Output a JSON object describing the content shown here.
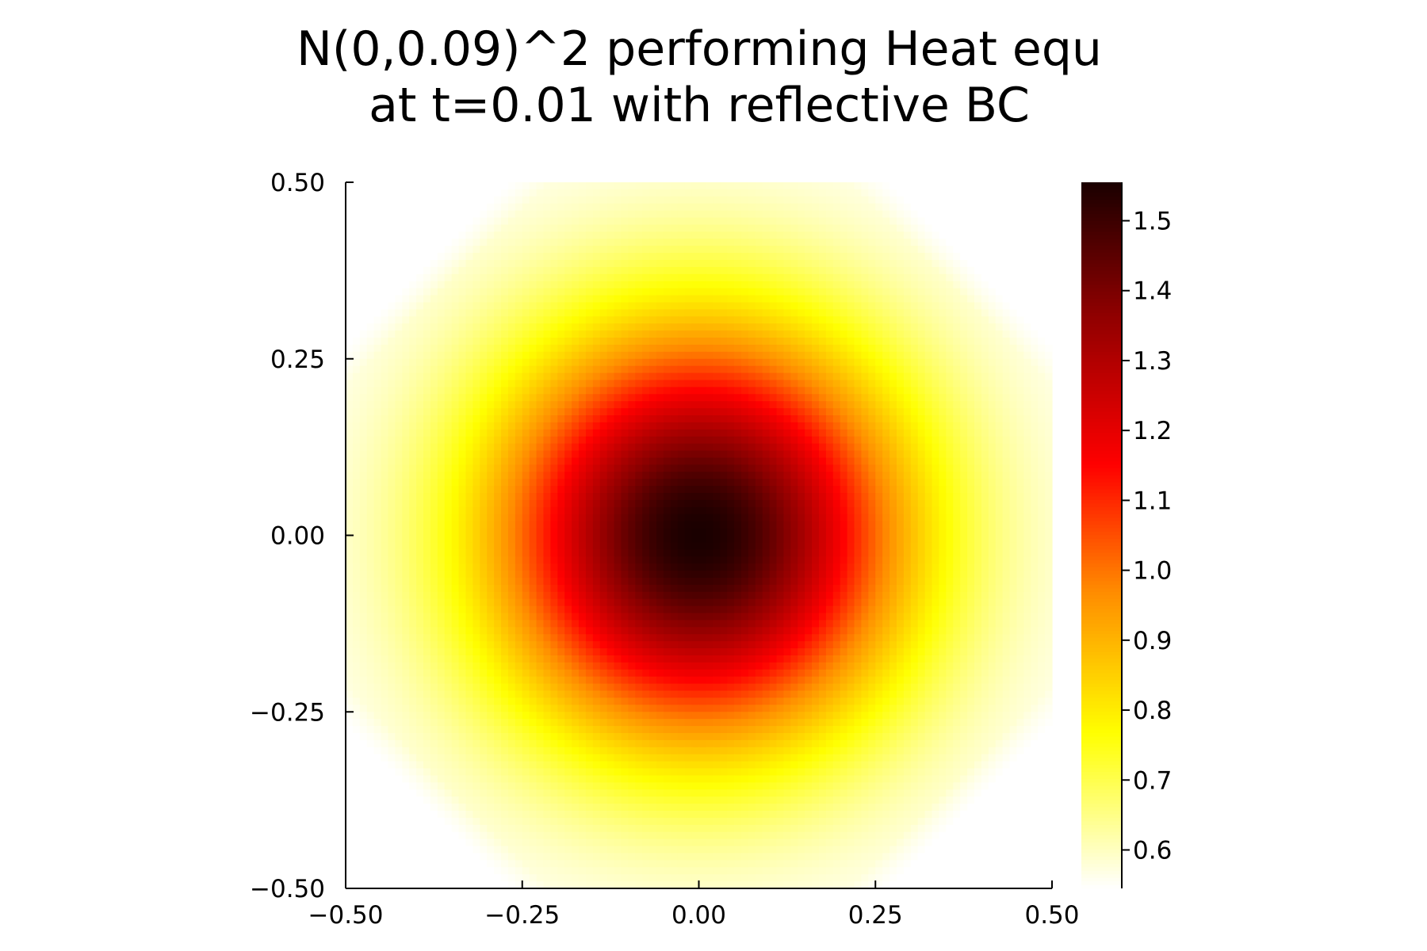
{
  "chart_data": {
    "type": "heatmap",
    "title_lines": [
      "N(0,0.09)^2 performing Heat equ",
      "at t=0.01 with reflective BC"
    ],
    "xlabel": "",
    "ylabel": "",
    "xlim": [
      -0.5,
      0.5
    ],
    "ylim": [
      -0.5,
      0.5
    ],
    "x_ticks": [
      -0.5,
      -0.25,
      0.0,
      0.25,
      0.5
    ],
    "x_tick_labels": [
      "−0.50",
      "−0.25",
      "0.00",
      "0.25",
      "0.50"
    ],
    "y_ticks": [
      -0.5,
      -0.25,
      0.0,
      0.25,
      0.5
    ],
    "y_tick_labels": [
      "−0.50",
      "−0.25",
      "0.00",
      "0.25",
      "0.50"
    ],
    "colorbar": {
      "range": [
        0.545,
        1.555
      ],
      "ticks": [
        0.6,
        0.7,
        0.8,
        0.9,
        1.0,
        1.1,
        1.2,
        1.3,
        1.4,
        1.5
      ],
      "tick_labels": [
        "0.6",
        "0.7",
        "0.8",
        "0.9",
        "1.0",
        "1.1",
        "1.2",
        "1.3",
        "1.4",
        "1.5"
      ]
    },
    "colormap": "heat",
    "colormap_stops": [
      "#ffffff",
      "#ffff00",
      "#ff8c00",
      "#ff0000",
      "#8b0000",
      "#1a0000"
    ],
    "field": {
      "grid": 100,
      "center_value": 1.555,
      "center_band": [
        0.0,
        0.0
      ],
      "min_value": 0.545,
      "corner_cut_value": 0.545,
      "notes_level_contours": [
        {
          "value": 0.7,
          "approx_extent": 0.46
        },
        {
          "value": 1.0,
          "approx_extent": 0.27
        },
        {
          "value": 1.3,
          "approx_extent": 0.13
        }
      ]
    },
    "grid": false,
    "legend": "none"
  }
}
